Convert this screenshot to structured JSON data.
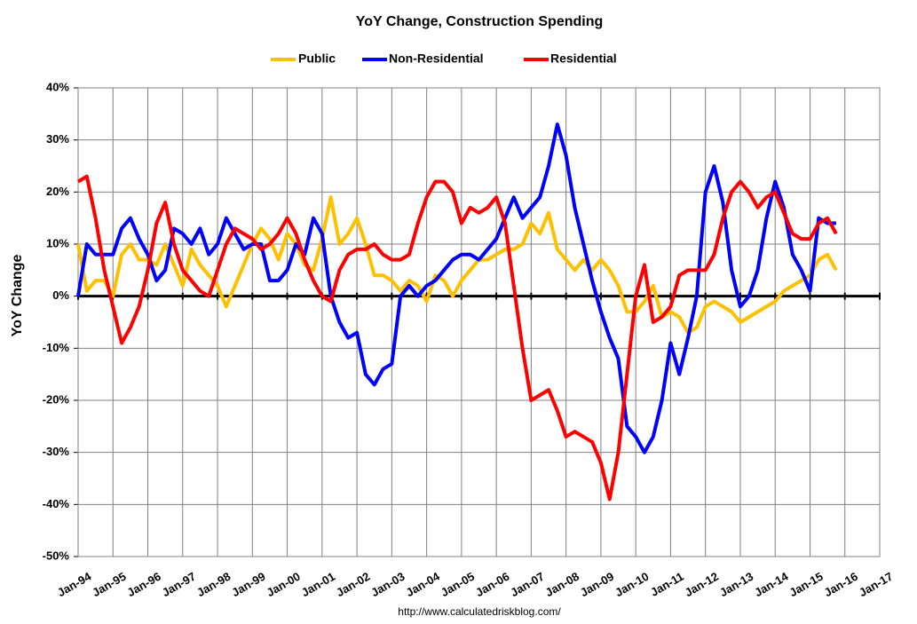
{
  "chart_data": {
    "type": "line",
    "title": "YoY Change,  Construction Spending",
    "ylabel": "YoY Change",
    "source": "http://www.calculatedriskblog.com/",
    "x": [
      "Jan-94",
      "Apr-94",
      "Jul-94",
      "Oct-94",
      "Jan-95",
      "Apr-95",
      "Jul-95",
      "Oct-95",
      "Jan-96",
      "Apr-96",
      "Jul-96",
      "Oct-96",
      "Jan-97",
      "Apr-97",
      "Jul-97",
      "Oct-97",
      "Jan-98",
      "Apr-98",
      "Jul-98",
      "Oct-98",
      "Jan-99",
      "Apr-99",
      "Jul-99",
      "Oct-99",
      "Jan-00",
      "Apr-00",
      "Jul-00",
      "Oct-00",
      "Jan-01",
      "Apr-01",
      "Jul-01",
      "Oct-01",
      "Jan-02",
      "Apr-02",
      "Jul-02",
      "Oct-02",
      "Jan-03",
      "Apr-03",
      "Jul-03",
      "Oct-03",
      "Jan-04",
      "Apr-04",
      "Jul-04",
      "Oct-04",
      "Jan-05",
      "Apr-05",
      "Jul-05",
      "Oct-05",
      "Jan-06",
      "Apr-06",
      "Jul-06",
      "Oct-06",
      "Jan-07",
      "Apr-07",
      "Jul-07",
      "Oct-07",
      "Jan-08",
      "Apr-08",
      "Jul-08",
      "Oct-08",
      "Jan-09",
      "Apr-09",
      "Jul-09",
      "Oct-09",
      "Jan-10",
      "Apr-10",
      "Jul-10",
      "Oct-10",
      "Jan-11",
      "Apr-11",
      "Jul-11",
      "Oct-11",
      "Jan-12",
      "Apr-12",
      "Jul-12",
      "Oct-12",
      "Jan-13",
      "Apr-13",
      "Jul-13",
      "Oct-13",
      "Jan-14",
      "Apr-14",
      "Jul-14",
      "Oct-14",
      "Jan-15",
      "Apr-15",
      "Jul-15",
      "Oct-15"
    ],
    "series": [
      {
        "name": "Public",
        "color": "#ffc000",
        "values": [
          10,
          1,
          3,
          3,
          0,
          8,
          10,
          7,
          7,
          6,
          10,
          6,
          2,
          9,
          6,
          4,
          2,
          -2,
          2,
          6,
          10,
          13,
          11,
          7,
          12,
          10,
          6,
          5,
          11,
          19,
          10,
          12,
          15,
          10,
          4,
          4,
          3,
          1,
          3,
          2,
          -1,
          4,
          3,
          0,
          3,
          5,
          7,
          7,
          8,
          9,
          9,
          10,
          14,
          12,
          16,
          9,
          7,
          5,
          7,
          5,
          7,
          5,
          2,
          -3,
          -3,
          -1,
          2,
          -4,
          -3,
          -4,
          -7,
          -6,
          -2,
          -1,
          -2,
          -3,
          -5,
          -4,
          -3,
          -2,
          -1,
          1,
          2,
          3,
          4,
          7,
          8,
          5
        ]
      },
      {
        "name": "Non-Residential",
        "color": "#0000ff",
        "values": [
          0,
          10,
          8,
          8,
          8,
          13,
          15,
          11,
          8,
          3,
          5,
          13,
          12,
          10,
          13,
          8,
          10,
          15,
          12,
          9,
          10,
          10,
          3,
          3,
          5,
          10,
          8,
          15,
          12,
          0,
          -5,
          -8,
          -7,
          -15,
          -17,
          -14,
          -13,
          0,
          2,
          0,
          2,
          3,
          5,
          7,
          8,
          8,
          7,
          9,
          11,
          15,
          19,
          15,
          17,
          19,
          25,
          33,
          27,
          17,
          10,
          3,
          -3,
          -8,
          -12,
          -25,
          -27,
          -30,
          -27,
          -20,
          -9,
          -15,
          -8,
          0,
          20,
          25,
          18,
          5,
          -2,
          0,
          5,
          15,
          22,
          17,
          8,
          5,
          1,
          15,
          14,
          14
        ]
      },
      {
        "name": "Residential",
        "color": "#ff0000",
        "values": [
          22,
          23,
          15,
          5,
          -2,
          -9,
          -6,
          -2,
          5,
          14,
          18,
          10,
          5,
          3,
          1,
          0,
          5,
          10,
          13,
          12,
          11,
          9,
          10,
          12,
          15,
          12,
          7,
          3,
          0,
          -1,
          5,
          8,
          9,
          9,
          10,
          8,
          7,
          7,
          8,
          14,
          19,
          22,
          22,
          20,
          14,
          17,
          16,
          17,
          19,
          14,
          2,
          -10,
          -20,
          -19,
          -18,
          -22,
          -27,
          -26,
          -27,
          -28,
          -32,
          -39,
          -30,
          -15,
          0,
          6,
          -5,
          -4,
          -2,
          4,
          5,
          5,
          5,
          8,
          15,
          20,
          22,
          20,
          17,
          19,
          20,
          16,
          12,
          11,
          11,
          14,
          15,
          12
        ]
      }
    ],
    "xticks": [
      "Jan-94",
      "Jan-95",
      "Jan-96",
      "Jan-97",
      "Jan-98",
      "Jan-99",
      "Jan-00",
      "Jan-01",
      "Jan-02",
      "Jan-03",
      "Jan-04",
      "Jan-05",
      "Jan-06",
      "Jan-07",
      "Jan-08",
      "Jan-09",
      "Jan-10",
      "Jan-11",
      "Jan-12",
      "Jan-13",
      "Jan-14",
      "Jan-15",
      "Jan-16",
      "Jan-17"
    ],
    "ylim": [
      -50,
      40
    ],
    "yticks": [
      {
        "value": -50,
        "label": "-50%"
      },
      {
        "value": -40,
        "label": "-40%"
      },
      {
        "value": -30,
        "label": "-30%"
      },
      {
        "value": -20,
        "label": "-20%"
      },
      {
        "value": -10,
        "label": "-10%"
      },
      {
        "value": 0,
        "label": "0%"
      },
      {
        "value": 10,
        "label": "10%"
      },
      {
        "value": 20,
        "label": "20%"
      },
      {
        "value": 30,
        "label": "30%"
      },
      {
        "value": 40,
        "label": "40%"
      }
    ],
    "grid": true,
    "legend": "top"
  }
}
